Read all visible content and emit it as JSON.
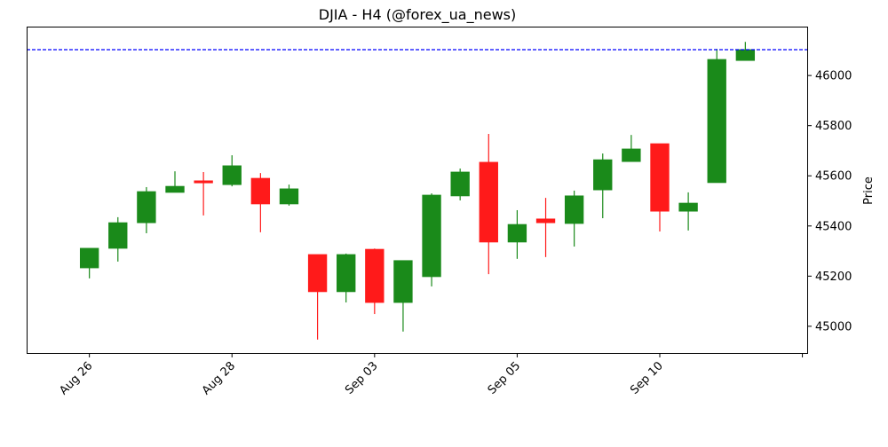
{
  "chart_data": {
    "type": "candlestick",
    "title": "DJIA - H4 (@forex_ua_news)",
    "xlabel": "",
    "ylabel": "Price",
    "y_axis_side": "right",
    "ylim": [
      44890,
      46195
    ],
    "yticks": [
      45000,
      45200,
      45400,
      45600,
      45800,
      46000
    ],
    "xlim": [
      -2.2,
      25.2
    ],
    "xticks": [
      {
        "index": 0,
        "label": "Aug 26"
      },
      {
        "index": 5,
        "label": "Aug 28"
      },
      {
        "index": 10,
        "label": "Sep 03"
      },
      {
        "index": 15,
        "label": "Sep 05"
      },
      {
        "index": 20,
        "label": "Sep 10"
      },
      {
        "index": 25,
        "label": ""
      }
    ],
    "grid": false,
    "colors": {
      "up": "#1a8a1a",
      "down": "#ff1a1a",
      "reference_line": "#0000ff"
    },
    "reference_line": {
      "value": 46103,
      "style": "dashed"
    },
    "candles": [
      {
        "o": 45233,
        "h": 45311,
        "l": 45191,
        "c": 45311
      },
      {
        "o": 45311,
        "h": 45435,
        "l": 45258,
        "c": 45413
      },
      {
        "o": 45413,
        "h": 45555,
        "l": 45371,
        "c": 45537
      },
      {
        "o": 45534,
        "h": 45618,
        "l": 45534,
        "c": 45558
      },
      {
        "o": 45580,
        "h": 45615,
        "l": 45442,
        "c": 45572
      },
      {
        "o": 45565,
        "h": 45682,
        "l": 45558,
        "c": 45640
      },
      {
        "o": 45590,
        "h": 45611,
        "l": 45375,
        "c": 45488
      },
      {
        "o": 45488,
        "h": 45565,
        "l": 45481,
        "c": 45548
      },
      {
        "o": 45286,
        "h": 45286,
        "l": 44947,
        "c": 45138
      },
      {
        "o": 45138,
        "h": 45290,
        "l": 45095,
        "c": 45286
      },
      {
        "o": 45307,
        "h": 45310,
        "l": 45049,
        "c": 45095
      },
      {
        "o": 45095,
        "h": 45262,
        "l": 44979,
        "c": 45262
      },
      {
        "o": 45198,
        "h": 45530,
        "l": 45159,
        "c": 45523
      },
      {
        "o": 45520,
        "h": 45629,
        "l": 45502,
        "c": 45615
      },
      {
        "o": 45654,
        "h": 45767,
        "l": 45208,
        "c": 45336
      },
      {
        "o": 45336,
        "h": 45463,
        "l": 45269,
        "c": 45406
      },
      {
        "o": 45428,
        "h": 45512,
        "l": 45276,
        "c": 45413
      },
      {
        "o": 45410,
        "h": 45541,
        "l": 45318,
        "c": 45520
      },
      {
        "o": 45544,
        "h": 45689,
        "l": 45431,
        "c": 45664
      },
      {
        "o": 45657,
        "h": 45763,
        "l": 45657,
        "c": 45707
      },
      {
        "o": 45728,
        "h": 45728,
        "l": 45378,
        "c": 45459
      },
      {
        "o": 45459,
        "h": 45534,
        "l": 45382,
        "c": 45491
      },
      {
        "o": 45573,
        "h": 46106,
        "l": 45573,
        "c": 46064
      },
      {
        "o": 46060,
        "h": 46134,
        "l": 46060,
        "c": 46103
      }
    ]
  }
}
